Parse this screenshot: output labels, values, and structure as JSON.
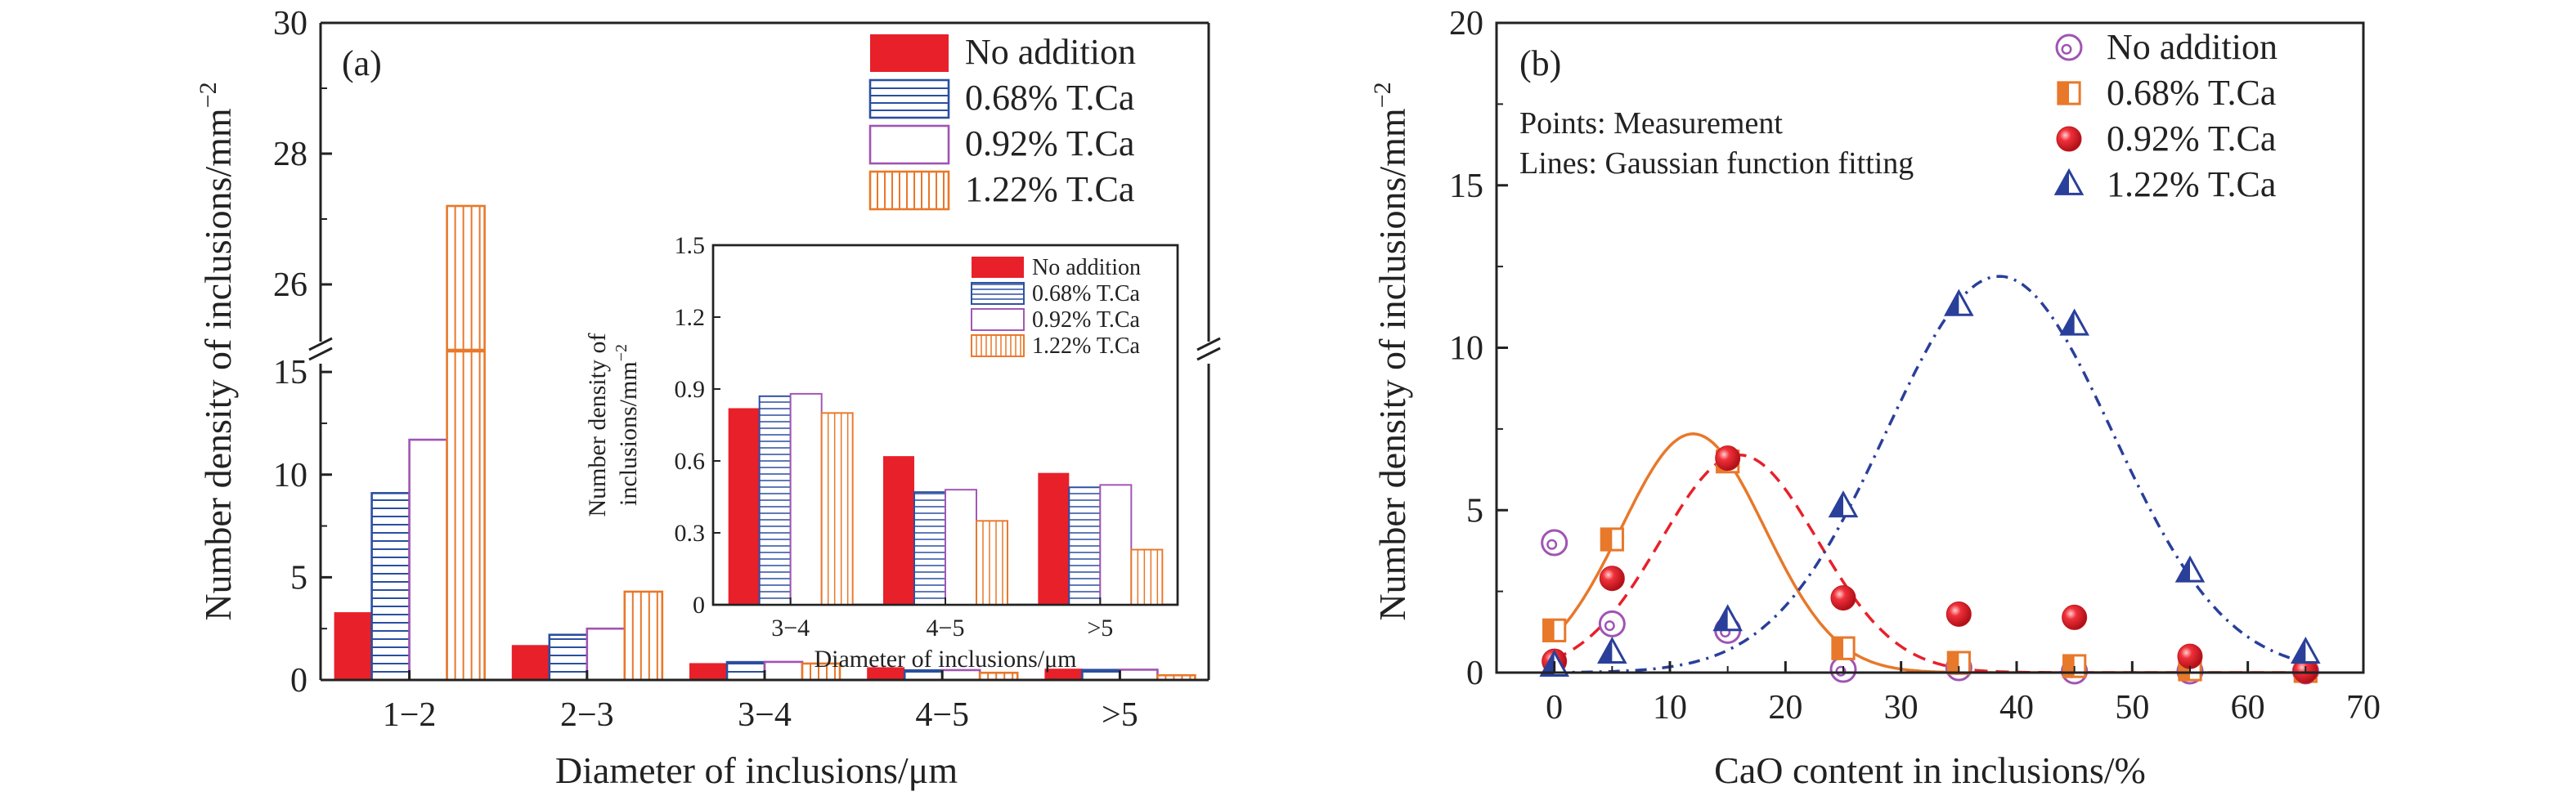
{
  "colors": {
    "no_addition": "#e8202a",
    "t068": "#2a4fa0",
    "t092": "#a054b4",
    "t122": "#e8782a",
    "blue_curve": "#2a3f9a",
    "axis": "#222222"
  },
  "chart_data": [
    {
      "type": "bar",
      "panel_label": "(a)",
      "xlabel": "Diameter of inclusions/μm",
      "ylabel": "Number density of inclusions/mm",
      "ylabel_sup": "−2",
      "categories": [
        "1−2",
        "2−3",
        "3−4",
        "4−5",
        ">5"
      ],
      "axis_break": true,
      "ylim_lower": [
        0,
        16
      ],
      "ylim_upper": [
        25,
        30
      ],
      "yticks_lower": [
        "0",
        "5",
        "10",
        "15"
      ],
      "yticks_upper": [
        "26",
        "28",
        "30"
      ],
      "series": [
        {
          "name": "No addition",
          "pattern": "solid",
          "values": [
            3.3,
            1.7,
            0.82,
            0.62,
            0.55
          ]
        },
        {
          "name": "0.68% T.Ca",
          "pattern": "hlines",
          "values": [
            9.1,
            2.2,
            0.87,
            0.47,
            0.49
          ]
        },
        {
          "name": "0.92% T.Ca",
          "pattern": "empty",
          "values": [
            11.7,
            2.5,
            0.88,
            0.48,
            0.5
          ]
        },
        {
          "name": "1.22% T.Ca",
          "pattern": "vlines",
          "values": [
            27.2,
            4.3,
            0.8,
            0.35,
            0.23
          ]
        }
      ],
      "inset": {
        "type": "bar",
        "xlabel": "Diameter of inclusions/μm",
        "ylabel_line1": "Number density of",
        "ylabel_line2": "inclusions/mm",
        "ylabel_sup": "−2",
        "categories": [
          "3−4",
          "4−5",
          ">5"
        ],
        "ylim": [
          0,
          1.5
        ],
        "yticks": [
          "0",
          "0.3",
          "0.6",
          "0.9",
          "1.2",
          "1.5"
        ],
        "series": [
          {
            "name": "No addition",
            "values": [
              0.82,
              0.62,
              0.55
            ]
          },
          {
            "name": "0.68% T.Ca",
            "values": [
              0.87,
              0.47,
              0.49
            ]
          },
          {
            "name": "0.92% T.Ca",
            "values": [
              0.88,
              0.48,
              0.5
            ]
          },
          {
            "name": "1.22% T.Ca",
            "values": [
              0.8,
              0.35,
              0.23
            ]
          }
        ]
      }
    },
    {
      "type": "scatter",
      "panel_label": "(b)",
      "xlabel": "CaO content in inclusions/%",
      "ylabel": "Number density of inclusions/mm",
      "ylabel_sup": "−2",
      "xlim": [
        -5,
        70
      ],
      "ylim": [
        0,
        20
      ],
      "xticks": [
        "0",
        "10",
        "20",
        "30",
        "40",
        "50",
        "60",
        "70"
      ],
      "yticks": [
        "0",
        "5",
        "10",
        "15",
        "20"
      ],
      "annotation_line1": "Points: Measurement",
      "annotation_line2": "Lines: Gaussian function fitting",
      "x": [
        0,
        5,
        15,
        25,
        35,
        45,
        55,
        65
      ],
      "series": [
        {
          "name": "No addition",
          "marker": "circle-open-dot",
          "values": [
            4.0,
            1.5,
            1.3,
            0.1,
            0.15,
            0.05,
            0.05,
            0.05
          ]
        },
        {
          "name": "0.68% T.Ca",
          "marker": "square-half",
          "values": [
            1.3,
            4.1,
            6.5,
            0.75,
            0.3,
            0.2,
            0.1,
            0.05
          ]
        },
        {
          "name": "0.92% T.Ca",
          "marker": "sphere",
          "values": [
            0.35,
            2.9,
            6.6,
            2.3,
            1.8,
            1.7,
            0.5,
            0.05
          ]
        },
        {
          "name": "1.22% T.Ca",
          "marker": "triangle-half",
          "values": [
            0.2,
            0.6,
            1.6,
            5.1,
            11.3,
            10.7,
            3.1,
            0.6
          ]
        }
      ],
      "fits": [
        {
          "series": "0.68% T.Ca",
          "style": "solid",
          "amplitude": 7.35,
          "center": 12,
          "sigma": 6.2
        },
        {
          "series": "0.92% T.Ca",
          "style": "dashed",
          "amplitude": 6.7,
          "center": 16,
          "sigma": 6.8
        },
        {
          "series": "1.22% T.Ca",
          "style": "dashdot",
          "amplitude": 12.2,
          "center": 38.5,
          "sigma": 9.8
        }
      ]
    }
  ]
}
